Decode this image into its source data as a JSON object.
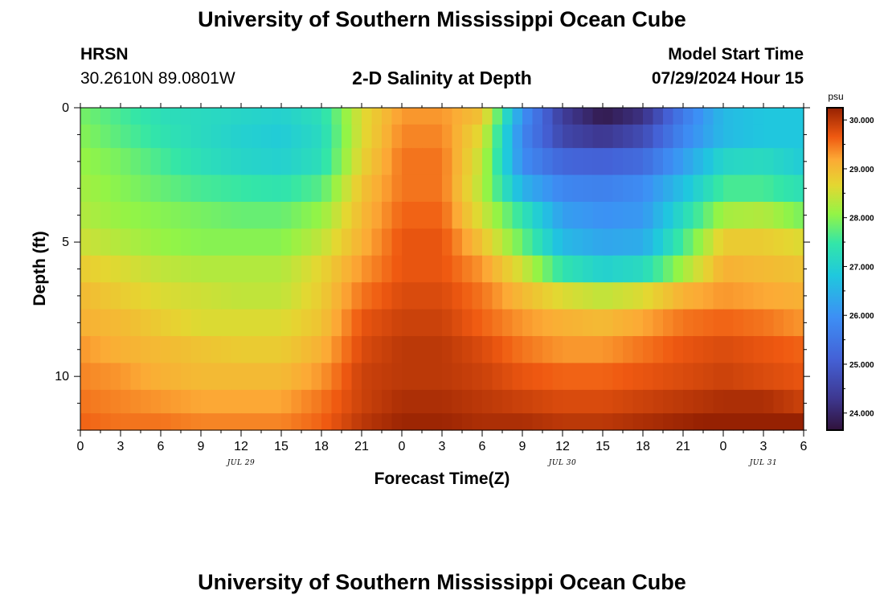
{
  "header": {
    "title": "University of Southern Mississippi Ocean Cube",
    "station": "HRSN",
    "coords": "30.2610N  89.0801W",
    "plot_title": "2-D Salinity at Depth",
    "model_label": "Model Start Time",
    "model_time": "07/29/2024 Hour 15"
  },
  "footer": {
    "title": "University of Southern Mississippi Ocean Cube"
  },
  "colors": {
    "bar_frame": "#000000"
  },
  "chart_data": {
    "type": "heatmap",
    "title": "2-D Salinity at Depth",
    "xlabel": "Forecast Time(Z)",
    "ylabel": "Depth (ft)",
    "colorbar_label": "psu",
    "colorbar_ticks": [
      "24.000",
      "25.000",
      "26.000",
      "27.000",
      "28.000",
      "29.000",
      "30.000"
    ],
    "colorbar_values": [
      24,
      25,
      26,
      27,
      28,
      29,
      30
    ],
    "colorbar_range": [
      23.65,
      30.25
    ],
    "x_tick_labels": [
      "0",
      "3",
      "6",
      "9",
      "12",
      "15",
      "18",
      "21",
      "0",
      "3",
      "6",
      "9",
      "12",
      "15",
      "18",
      "21",
      "0",
      "3",
      "6"
    ],
    "x_range_hours": [
      0,
      54
    ],
    "date_labels": [
      {
        "label": "JUL 29",
        "hour": 12
      },
      {
        "label": "JUL 30",
        "hour": 36
      },
      {
        "label": "JUL 31",
        "hour": 51
      }
    ],
    "y_tick_labels": [
      "0",
      "5",
      "10"
    ],
    "y_tick_values": [
      0,
      5,
      10
    ],
    "y_range_ft": [
      0,
      12
    ],
    "depth_levels_ft": [
      0.25,
      1,
      2,
      3,
      4,
      5,
      6,
      7,
      8,
      9,
      10,
      11,
      11.75
    ],
    "time_hours": [
      0,
      3,
      6,
      9,
      12,
      15,
      18,
      21,
      24,
      27,
      30,
      33,
      36,
      39,
      42,
      45,
      48,
      51,
      54
    ],
    "salinity_psu": [
      [
        27.9,
        27.6,
        27.3,
        27.2,
        27.1,
        27.0,
        27.3,
        28.6,
        29.3,
        29.3,
        28.9,
        26.0,
        24.4,
        23.8,
        24.2,
        25.6,
        26.6,
        26.8,
        26.8
      ],
      [
        28.0,
        27.7,
        27.4,
        27.2,
        27.0,
        26.9,
        27.2,
        28.6,
        29.4,
        29.4,
        28.6,
        25.8,
        24.6,
        24.3,
        24.7,
        25.8,
        26.6,
        26.8,
        26.8
      ],
      [
        28.1,
        27.9,
        27.6,
        27.3,
        27.1,
        27.0,
        27.3,
        28.7,
        29.5,
        29.5,
        28.4,
        25.9,
        25.2,
        25.1,
        25.3,
        26.2,
        27.1,
        27.2,
        26.9
      ],
      [
        28.2,
        28.0,
        27.8,
        27.6,
        27.5,
        27.4,
        27.7,
        28.9,
        29.5,
        29.5,
        28.3,
        26.5,
        25.8,
        25.7,
        25.9,
        26.7,
        27.6,
        27.6,
        27.3
      ],
      [
        28.3,
        28.1,
        28.0,
        27.9,
        27.8,
        27.8,
        28.1,
        29.0,
        29.6,
        29.6,
        28.5,
        27.4,
        26.2,
        26.0,
        26.1,
        27.2,
        28.2,
        28.3,
        27.9
      ],
      [
        28.5,
        28.3,
        28.1,
        28.0,
        28.0,
        28.0,
        28.4,
        29.1,
        29.7,
        29.7,
        28.9,
        27.8,
        26.6,
        26.3,
        26.4,
        27.6,
        28.8,
        28.8,
        28.6
      ],
      [
        28.8,
        28.6,
        28.4,
        28.3,
        28.3,
        28.3,
        28.7,
        29.3,
        29.7,
        29.7,
        29.3,
        28.5,
        27.4,
        27.0,
        27.2,
        28.2,
        29.1,
        29.0,
        28.9
      ],
      [
        29.0,
        28.8,
        28.6,
        28.5,
        28.4,
        28.4,
        28.8,
        29.5,
        29.8,
        29.8,
        29.5,
        29.0,
        28.6,
        28.4,
        28.6,
        29.1,
        29.3,
        29.2,
        29.1
      ],
      [
        29.1,
        29.0,
        28.8,
        28.6,
        28.6,
        28.6,
        28.9,
        29.7,
        29.9,
        29.9,
        29.6,
        29.3,
        29.1,
        29.0,
        29.2,
        29.5,
        29.6,
        29.5,
        29.3
      ],
      [
        29.3,
        29.1,
        29.0,
        28.9,
        28.8,
        28.8,
        29.1,
        29.8,
        30.0,
        30.0,
        29.8,
        29.5,
        29.3,
        29.3,
        29.5,
        29.7,
        29.8,
        29.7,
        29.6
      ],
      [
        29.4,
        29.3,
        29.1,
        29.0,
        29.0,
        29.0,
        29.3,
        29.9,
        30.0,
        30.0,
        29.9,
        29.7,
        29.6,
        29.6,
        29.7,
        29.8,
        29.9,
        29.8,
        29.7
      ],
      [
        29.5,
        29.4,
        29.3,
        29.2,
        29.2,
        29.2,
        29.5,
        29.9,
        30.1,
        30.1,
        30.0,
        29.9,
        29.8,
        29.8,
        29.9,
        30.0,
        30.1,
        30.1,
        29.9
      ],
      [
        29.6,
        29.5,
        29.5,
        29.4,
        29.4,
        29.4,
        29.6,
        30.0,
        30.2,
        30.2,
        30.1,
        30.1,
        30.0,
        30.0,
        30.1,
        30.2,
        30.3,
        30.4,
        30.5
      ]
    ]
  }
}
